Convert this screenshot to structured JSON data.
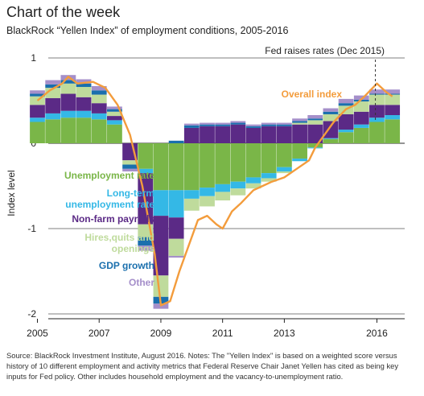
{
  "title": "Chart of the week",
  "subtitle": "BlackRock “Yellen Index” of employment conditions, 2005-2016",
  "footer": "Source: BlackRock Investment Institute, August 2016. Notes: The \"Yellen Index\" is based on a weighted score versus history of 10 different employment and activity metrics that Federal Reserve Chair Janet Yellen has cited as being key inputs for Fed policy. Other includes household employment and the vacancy-to-unemployment ratio.",
  "chart_data": {
    "type": "bar",
    "stacked": true,
    "ylabel": "Index level",
    "ylim": [
      -2,
      1
    ],
    "yticks": [
      "1",
      "0",
      "-1",
      "-2"
    ],
    "xlim": [
      2004.7,
      2016.9
    ],
    "xticks": [
      "2005",
      "2007",
      "2009",
      "2011",
      "2013",
      "2016"
    ],
    "x": [
      2005.0,
      2005.5,
      2006.0,
      2006.5,
      2007.0,
      2007.5,
      2008.0,
      2008.5,
      2009.0,
      2009.5,
      2010.0,
      2010.5,
      2011.0,
      2011.5,
      2012.0,
      2012.5,
      2013.0,
      2013.5,
      2014.0,
      2014.5,
      2015.0,
      2015.5,
      2016.0,
      2016.5
    ],
    "series": [
      {
        "name": "Unemployment rate",
        "color": "#7ab648",
        "values": [
          0.25,
          0.28,
          0.3,
          0.3,
          0.28,
          0.22,
          0.0,
          -0.3,
          -0.55,
          -0.55,
          -0.55,
          -0.52,
          -0.48,
          -0.45,
          -0.4,
          -0.35,
          -0.28,
          -0.18,
          -0.05,
          0.05,
          0.13,
          0.18,
          0.25,
          0.28
        ]
      },
      {
        "name": "Long-term unemployment rate",
        "color": "#34b8e6",
        "values": [
          0.05,
          0.07,
          0.08,
          0.08,
          0.07,
          0.05,
          0.0,
          -0.05,
          -0.3,
          -0.32,
          -0.1,
          -0.1,
          -0.09,
          -0.08,
          -0.07,
          -0.06,
          -0.05,
          -0.03,
          -0.01,
          0.01,
          0.03,
          0.04,
          0.05,
          0.05
        ]
      },
      {
        "name": "Non-farm payrolls",
        "color": "#5b2a86",
        "values": [
          0.15,
          0.18,
          0.2,
          0.16,
          0.12,
          0.05,
          -0.2,
          -0.6,
          -0.7,
          -0.25,
          0.18,
          0.2,
          0.2,
          0.22,
          0.18,
          0.2,
          0.2,
          0.22,
          0.22,
          0.2,
          0.18,
          0.15,
          0.15,
          0.12
        ]
      },
      {
        "name": "Hires,quits and openings",
        "color": "#bfdb9c",
        "values": [
          0.1,
          0.12,
          0.12,
          0.12,
          0.1,
          0.05,
          -0.05,
          -0.15,
          -0.25,
          -0.2,
          -0.14,
          -0.12,
          -0.1,
          -0.08,
          -0.06,
          -0.04,
          -0.02,
          0.02,
          0.05,
          0.08,
          0.1,
          0.12,
          0.12,
          0.12
        ]
      },
      {
        "name": "GDP growth",
        "color": "#1a6fad",
        "values": [
          0.03,
          0.04,
          0.04,
          0.04,
          0.05,
          0.03,
          -0.05,
          -0.1,
          -0.08,
          0.03,
          0.03,
          0.02,
          0.02,
          0.02,
          0.02,
          0.02,
          0.02,
          0.02,
          0.02,
          0.03,
          0.03,
          0.02,
          0.01,
          0.01
        ]
      },
      {
        "name": "Other",
        "color": "#a58fca",
        "values": [
          0.04,
          0.05,
          0.06,
          0.05,
          0.05,
          0.03,
          -0.03,
          -0.06,
          -0.06,
          -0.02,
          0.02,
          0.02,
          0.02,
          0.02,
          0.02,
          0.02,
          0.02,
          0.03,
          0.04,
          0.04,
          0.05,
          0.05,
          0.05,
          0.05
        ]
      }
    ],
    "overall_index": {
      "name": "Overall index",
      "color": "#f39c3c",
      "x": [
        2005.0,
        2005.4,
        2005.8,
        2006.0,
        2006.3,
        2006.8,
        2007.2,
        2007.6,
        2008.0,
        2008.4,
        2008.8,
        2009.0,
        2009.3,
        2009.6,
        2009.9,
        2010.2,
        2010.5,
        2010.8,
        2011.0,
        2011.3,
        2011.6,
        2012.0,
        2012.3,
        2012.6,
        2013.0,
        2013.4,
        2013.8,
        2014.0,
        2014.3,
        2014.6,
        2015.0,
        2015.3,
        2015.6,
        2016.0,
        2016.3,
        2016.5
      ],
      "y": [
        0.5,
        0.62,
        0.7,
        0.78,
        0.7,
        0.72,
        0.65,
        0.45,
        0.1,
        -0.5,
        -1.3,
        -1.9,
        -1.85,
        -1.5,
        -1.2,
        -0.9,
        -0.85,
        -0.95,
        -1.0,
        -0.8,
        -0.7,
        -0.55,
        -0.5,
        -0.45,
        -0.4,
        -0.3,
        -0.2,
        -0.05,
        0.1,
        0.25,
        0.4,
        0.45,
        0.55,
        0.7,
        0.6,
        0.55
      ]
    },
    "annotation": {
      "label": "Fed raises rates (Dec 2015)",
      "x": 2015.95
    },
    "legend_placement": "inline-left",
    "grid": "horizontal"
  }
}
